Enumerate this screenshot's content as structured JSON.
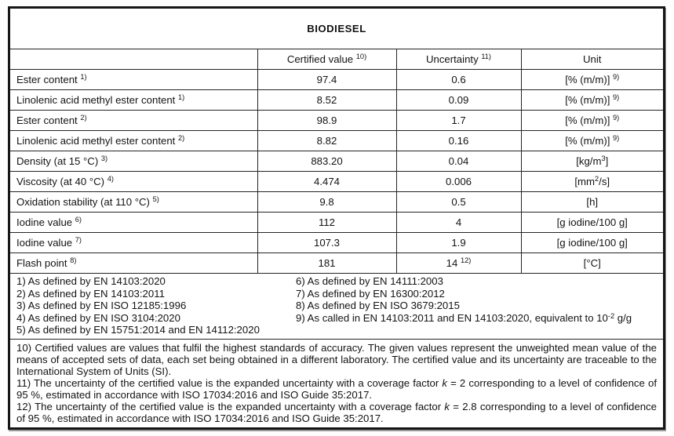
{
  "title": "BIODIESEL",
  "table": {
    "columns": {
      "property": "",
      "certified": [
        {
          "t": "Certified value "
        },
        {
          "t": "10)",
          "s": "sup"
        }
      ],
      "uncertainty": [
        {
          "t": "Uncertainty "
        },
        {
          "t": "11)",
          "s": "sup"
        }
      ],
      "unit": "Unit"
    },
    "rows": [
      {
        "property": [
          {
            "t": "Ester content "
          },
          {
            "t": "1)",
            "s": "sup"
          }
        ],
        "value": "97.4",
        "uncertainty": "0.6",
        "unit": [
          {
            "t": "[% (m/m)] "
          },
          {
            "t": "9)",
            "s": "sup"
          }
        ]
      },
      {
        "property": [
          {
            "t": "Linolenic acid methyl ester content "
          },
          {
            "t": "1)",
            "s": "sup"
          }
        ],
        "value": "8.52",
        "uncertainty": "0.09",
        "unit": [
          {
            "t": "[% (m/m)] "
          },
          {
            "t": "9)",
            "s": "sup"
          }
        ]
      },
      {
        "property": [
          {
            "t": "Ester content "
          },
          {
            "t": "2)",
            "s": "sup"
          }
        ],
        "value": "98.9",
        "uncertainty": "1.7",
        "unit": [
          {
            "t": "[% (m/m)] "
          },
          {
            "t": "9)",
            "s": "sup"
          }
        ]
      },
      {
        "property": [
          {
            "t": "Linolenic acid methyl ester content "
          },
          {
            "t": "2)",
            "s": "sup"
          }
        ],
        "value": "8.82",
        "uncertainty": "0.16",
        "unit": [
          {
            "t": "[% (m/m)] "
          },
          {
            "t": "9)",
            "s": "sup"
          }
        ]
      },
      {
        "property": [
          {
            "t": "Density (at 15 °C) "
          },
          {
            "t": "3)",
            "s": "sup"
          }
        ],
        "value": "883.20",
        "uncertainty": "0.04",
        "unit": [
          {
            "t": "[kg/m"
          },
          {
            "t": "3",
            "s": "sup"
          },
          {
            "t": "]"
          }
        ]
      },
      {
        "property": [
          {
            "t": "Viscosity (at 40 °C) "
          },
          {
            "t": "4)",
            "s": "sup"
          }
        ],
        "value": "4.474",
        "uncertainty": "0.006",
        "unit": [
          {
            "t": "[mm"
          },
          {
            "t": "2",
            "s": "sup"
          },
          {
            "t": "/s]"
          }
        ]
      },
      {
        "property": [
          {
            "t": "Oxidation stability (at 110 °C) "
          },
          {
            "t": "5)",
            "s": "sup"
          }
        ],
        "value": "9.8",
        "uncertainty": "0.5",
        "unit": "[h]"
      },
      {
        "property": [
          {
            "t": "Iodine value "
          },
          {
            "t": "6)",
            "s": "sup"
          }
        ],
        "value": "112",
        "uncertainty": "4",
        "unit": "[g iodine/100 g]"
      },
      {
        "property": [
          {
            "t": "Iodine value "
          },
          {
            "t": "7)",
            "s": "sup"
          }
        ],
        "value": "107.3",
        "uncertainty": "1.9",
        "unit": "[g iodine/100 g]"
      },
      {
        "property": [
          {
            "t": "Flash point "
          },
          {
            "t": "8)",
            "s": "sup"
          }
        ],
        "value": "181",
        "uncertainty": [
          {
            "t": "14 "
          },
          {
            "t": "12)",
            "s": "sup"
          }
        ],
        "unit": "[°C]"
      }
    ]
  },
  "footnotes": {
    "left": [
      "1) As defined by EN 14103:2020",
      "2) As defined by EN 14103:2011",
      "3) As defined by EN ISO 12185:1996",
      "4) As defined by EN ISO 3104:2020",
      "5) As defined by EN 15751:2014 and EN 14112:2020"
    ],
    "right": [
      "6) As defined by EN 14111:2003",
      "7) As defined by EN 16300:2012",
      "8) As defined by EN ISO 3679:2015",
      [
        {
          "t": "9) As called in EN 14103:2011 and EN 14103:2020, equivalent to 10"
        },
        {
          "t": "-2",
          "s": "sup"
        },
        {
          "t": " g/g"
        }
      ]
    ]
  },
  "paragraphs": [
    [
      {
        "t": "10) Certified values are values that fulfil the highest standards of accuracy. The given values represent the unweighted mean value of the means of accepted sets of data, each set being obtained in a different laboratory. The certified value and its uncertainty are traceable to the International System of Units (SI)."
      }
    ],
    [
      {
        "t": "11) The uncertainty of the certified value is the expanded uncertainty with a coverage factor "
      },
      {
        "t": "k",
        "s": "i"
      },
      {
        "t": " = 2 corresponding to a level of confidence of 95 %, estimated in accordance with ISO 17034:2016 and ISO Guide 35:2017."
      }
    ],
    [
      {
        "t": "12) The uncertainty of the certified value is the expanded uncertainty with a coverage factor "
      },
      {
        "t": "k",
        "s": "i"
      },
      {
        "t": " = 2.8 corresponding to a level of confidence of 95 %, estimated in accordance with ISO 17034:2016 and ISO Guide 35:2017."
      }
    ]
  ]
}
